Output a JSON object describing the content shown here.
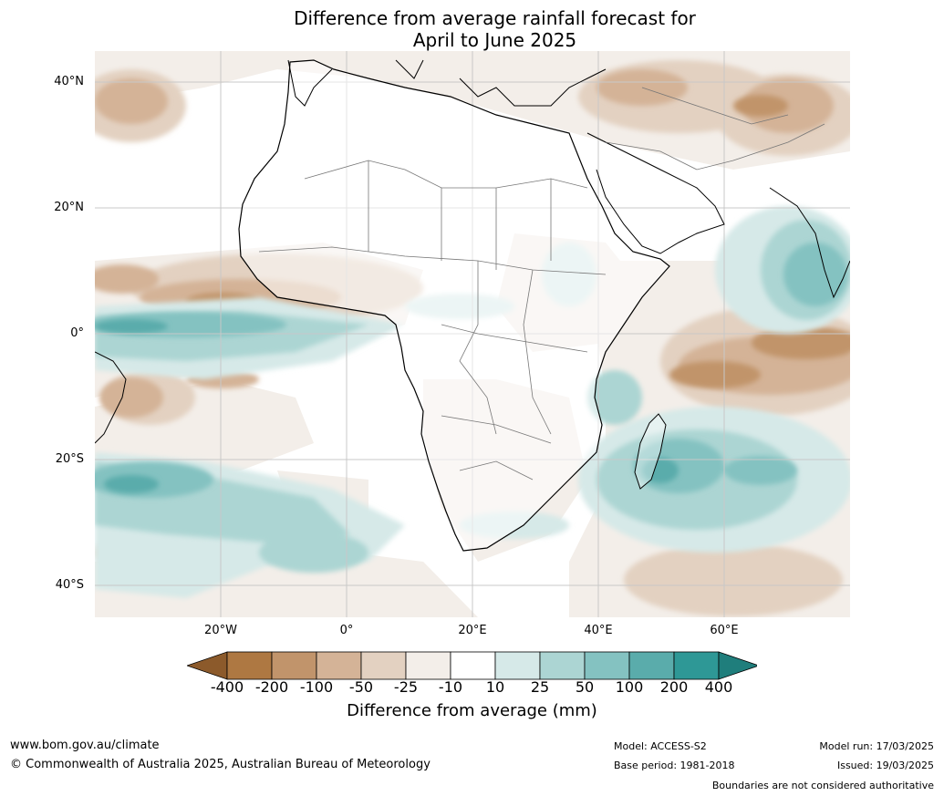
{
  "title": {
    "line1": "Difference from average rainfall forecast for",
    "line2": "April to June 2025"
  },
  "map": {
    "lat_labels": [
      "40°N",
      "20°N",
      "0°",
      "20°S",
      "40°S"
    ],
    "lon_labels": [
      "20°W",
      "0°",
      "20°E",
      "40°E",
      "60°E"
    ],
    "lat_range": [
      -45,
      45
    ],
    "lon_range": [
      -40,
      80
    ],
    "gridlines": true
  },
  "colorbar": {
    "ticks": [
      "-400",
      "-200",
      "-100",
      "-50",
      "-25",
      "-10",
      "10",
      "25",
      "50",
      "100",
      "200",
      "400"
    ],
    "colors": [
      "#8c5a2b",
      "#ae7842",
      "#c1946b",
      "#d4b397",
      "#e3d1c1",
      "#f3eee9",
      "#ffffff",
      "#d6e9e8",
      "#acd5d3",
      "#84c2c1",
      "#5aacab",
      "#2e9896",
      "#1f7e7c"
    ],
    "label": "Difference from average (mm)"
  },
  "footer": {
    "website": "www.bom.gov.au/climate",
    "copyright": "© Commonwealth of Australia 2025, Australian Bureau of Meteorology",
    "model": "Model: ACCESS-S2",
    "base_period": "Base period: 1981-2018",
    "model_run": "Model run: 17/03/2025",
    "issued": "Issued: 19/03/2025",
    "disclaimer": "Boundaries are not considered authoritative"
  }
}
